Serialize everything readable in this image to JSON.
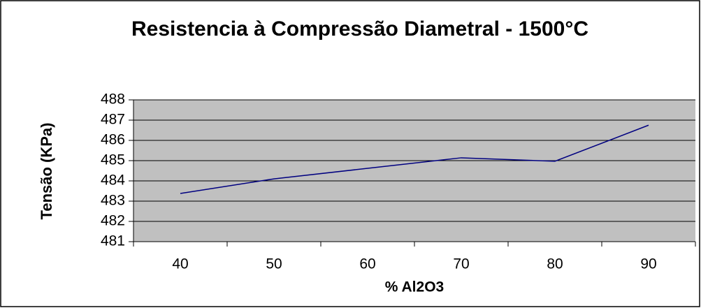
{
  "chart_data": {
    "type": "line",
    "title": "Resistencia à Compressão Diametral - 1500°C",
    "x_label": "% Al2O3",
    "y_label": "Tensão (KPa)",
    "categories": [
      "40",
      "50",
      "60",
      "70",
      "80",
      "90"
    ],
    "series": [
      {
        "name": "Tensão",
        "color": "#000080",
        "values": [
          483.38,
          484.1,
          484.62,
          485.14,
          484.97,
          486.75
        ]
      }
    ],
    "ylim": [
      481,
      488
    ],
    "yticks": [
      481,
      482,
      483,
      484,
      485,
      486,
      487,
      488
    ],
    "grid": true,
    "legend": false,
    "plot_background": "#c0c0c0"
  }
}
